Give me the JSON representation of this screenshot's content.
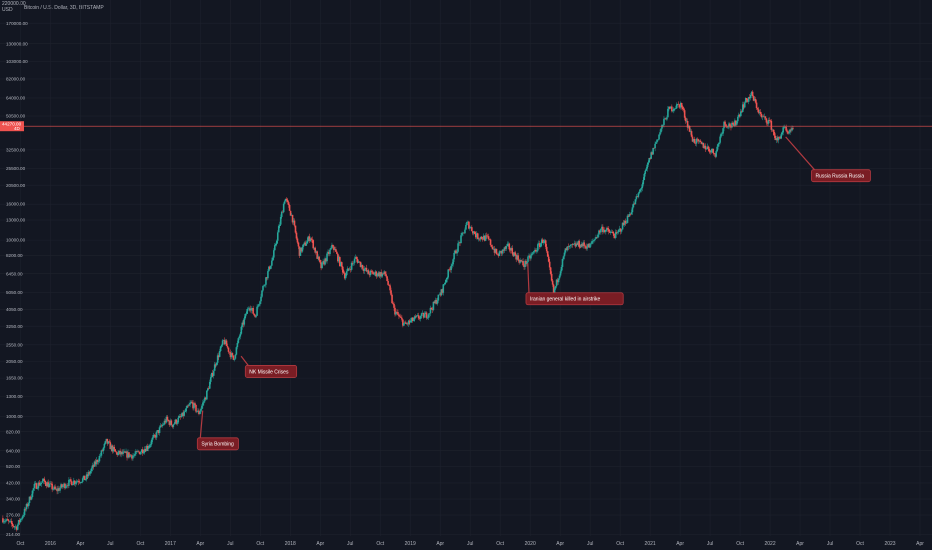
{
  "header": {
    "top_label": "220000.00",
    "currency": "USD",
    "symbol": "Bitcoin / U.S. Dollar, 3D, BITSTAMP"
  },
  "colors": {
    "background": "#131722",
    "grid": "#1e222d",
    "up": "#26a69a",
    "down": "#ef5350",
    "current_line": "#ef5350",
    "annotation_bg": "#7a1d24",
    "annotation_border": "#b13a40"
  },
  "current_price": {
    "label": "44270.00",
    "sub": "4D",
    "value": 44270
  },
  "chart_data": {
    "type": "candlestick",
    "title": "",
    "ylabel": "",
    "xlabel": "",
    "yscale": "log",
    "ylim": [
      210,
      230000
    ],
    "grid": true,
    "y_ticks": [
      "214.00",
      "276.00",
      "340.00",
      "420.00",
      "520.00",
      "640.00",
      "820.00",
      "1000.00",
      "1300.00",
      "1650.00",
      "2050.00",
      "2550.00",
      "3250.00",
      "4050.00",
      "5050.00",
      "6450.00",
      "8200.00",
      "10000.00",
      "13000.00",
      "16000.00",
      "20500.00",
      "25500.00",
      "32500.00",
      "50500.00",
      "64000.00",
      "82000.00",
      "103000.00",
      "130000.00",
      "170000.00"
    ],
    "y_tick_values": [
      214,
      276,
      340,
      420,
      520,
      640,
      820,
      1000,
      1300,
      1650,
      2050,
      2550,
      3250,
      4050,
      5050,
      6450,
      8200,
      10000,
      13000,
      16000,
      20500,
      25500,
      32500,
      50500,
      64000,
      82000,
      103000,
      130000,
      170000
    ],
    "x_ticks": [
      {
        "label": "Oct",
        "t": 2015.75
      },
      {
        "label": "2016",
        "t": 2016.0
      },
      {
        "label": "Apr",
        "t": 2016.25
      },
      {
        "label": "Jul",
        "t": 2016.5
      },
      {
        "label": "Oct",
        "t": 2016.75
      },
      {
        "label": "2017",
        "t": 2017.0
      },
      {
        "label": "Apr",
        "t": 2017.25
      },
      {
        "label": "Jul",
        "t": 2017.5
      },
      {
        "label": "Oct",
        "t": 2017.75
      },
      {
        "label": "2018",
        "t": 2018.0
      },
      {
        "label": "Apr",
        "t": 2018.25
      },
      {
        "label": "Jul",
        "t": 2018.5
      },
      {
        "label": "Oct",
        "t": 2018.75
      },
      {
        "label": "2019",
        "t": 2019.0
      },
      {
        "label": "Apr",
        "t": 2019.25
      },
      {
        "label": "Jul",
        "t": 2019.5
      },
      {
        "label": "Oct",
        "t": 2019.75
      },
      {
        "label": "2020",
        "t": 2020.0
      },
      {
        "label": "Apr",
        "t": 2020.25
      },
      {
        "label": "Jul",
        "t": 2020.5
      },
      {
        "label": "Oct",
        "t": 2020.75
      },
      {
        "label": "2021",
        "t": 2021.0
      },
      {
        "label": "Apr",
        "t": 2021.25
      },
      {
        "label": "Jul",
        "t": 2021.5
      },
      {
        "label": "Oct",
        "t": 2021.75
      },
      {
        "label": "2022",
        "t": 2022.0
      },
      {
        "label": "Apr",
        "t": 2022.25
      },
      {
        "label": "Jul",
        "t": 2022.5
      },
      {
        "label": "Oct",
        "t": 2022.75
      },
      {
        "label": "2023",
        "t": 2023.0
      },
      {
        "label": "Apr",
        "t": 2023.25
      }
    ],
    "xlim": [
      2015.58,
      2023.35
    ],
    "price_path": [
      {
        "t": 2015.6,
        "p": 265
      },
      {
        "t": 2015.72,
        "p": 235
      },
      {
        "t": 2015.8,
        "p": 300
      },
      {
        "t": 2015.87,
        "p": 400
      },
      {
        "t": 2015.95,
        "p": 430
      },
      {
        "t": 2016.05,
        "p": 380
      },
      {
        "t": 2016.15,
        "p": 420
      },
      {
        "t": 2016.3,
        "p": 445
      },
      {
        "t": 2016.42,
        "p": 600
      },
      {
        "t": 2016.47,
        "p": 720
      },
      {
        "t": 2016.55,
        "p": 620
      },
      {
        "t": 2016.7,
        "p": 600
      },
      {
        "t": 2016.82,
        "p": 680
      },
      {
        "t": 2016.97,
        "p": 960
      },
      {
        "t": 2017.02,
        "p": 900
      },
      {
        "t": 2017.1,
        "p": 1000
      },
      {
        "t": 2017.18,
        "p": 1200
      },
      {
        "t": 2017.24,
        "p": 1040
      },
      {
        "t": 2017.3,
        "p": 1300
      },
      {
        "t": 2017.38,
        "p": 2000
      },
      {
        "t": 2017.45,
        "p": 2700
      },
      {
        "t": 2017.53,
        "p": 2100
      },
      {
        "t": 2017.6,
        "p": 3200
      },
      {
        "t": 2017.66,
        "p": 4300
      },
      {
        "t": 2017.71,
        "p": 3700
      },
      {
        "t": 2017.78,
        "p": 5500
      },
      {
        "t": 2017.86,
        "p": 8000
      },
      {
        "t": 2017.96,
        "p": 17500
      },
      {
        "t": 2018.02,
        "p": 13500
      },
      {
        "t": 2018.08,
        "p": 8500
      },
      {
        "t": 2018.17,
        "p": 10500
      },
      {
        "t": 2018.26,
        "p": 7000
      },
      {
        "t": 2018.36,
        "p": 9300
      },
      {
        "t": 2018.46,
        "p": 6300
      },
      {
        "t": 2018.55,
        "p": 7900
      },
      {
        "t": 2018.65,
        "p": 6500
      },
      {
        "t": 2018.8,
        "p": 6400
      },
      {
        "t": 2018.87,
        "p": 4000
      },
      {
        "t": 2018.96,
        "p": 3300
      },
      {
        "t": 2019.05,
        "p": 3600
      },
      {
        "t": 2019.15,
        "p": 3800
      },
      {
        "t": 2019.26,
        "p": 5000
      },
      {
        "t": 2019.38,
        "p": 8500
      },
      {
        "t": 2019.48,
        "p": 12500
      },
      {
        "t": 2019.56,
        "p": 10500
      },
      {
        "t": 2019.65,
        "p": 10200
      },
      {
        "t": 2019.73,
        "p": 8200
      },
      {
        "t": 2019.82,
        "p": 9200
      },
      {
        "t": 2019.95,
        "p": 7200
      },
      {
        "t": 2020.05,
        "p": 8800
      },
      {
        "t": 2020.12,
        "p": 10200
      },
      {
        "t": 2020.2,
        "p": 5000
      },
      {
        "t": 2020.3,
        "p": 8800
      },
      {
        "t": 2020.4,
        "p": 9500
      },
      {
        "t": 2020.5,
        "p": 9200
      },
      {
        "t": 2020.6,
        "p": 11700
      },
      {
        "t": 2020.72,
        "p": 10600
      },
      {
        "t": 2020.82,
        "p": 13500
      },
      {
        "t": 2020.92,
        "p": 19000
      },
      {
        "t": 2021.0,
        "p": 29000
      },
      {
        "t": 2021.08,
        "p": 40000
      },
      {
        "t": 2021.16,
        "p": 55000
      },
      {
        "t": 2021.26,
        "p": 59000
      },
      {
        "t": 2021.36,
        "p": 37000
      },
      {
        "t": 2021.46,
        "p": 34000
      },
      {
        "t": 2021.55,
        "p": 31000
      },
      {
        "t": 2021.62,
        "p": 46000
      },
      {
        "t": 2021.7,
        "p": 44000
      },
      {
        "t": 2021.79,
        "p": 60000
      },
      {
        "t": 2021.85,
        "p": 67000
      },
      {
        "t": 2021.93,
        "p": 50000
      },
      {
        "t": 2022.0,
        "p": 47000
      },
      {
        "t": 2022.06,
        "p": 36000
      },
      {
        "t": 2022.12,
        "p": 43000
      },
      {
        "t": 2022.16,
        "p": 39000
      },
      {
        "t": 2022.19,
        "p": 44270
      }
    ],
    "annotations": [
      {
        "text": "Syria Bombing",
        "t": 2017.27,
        "p": 1080,
        "box_t": 2017.25,
        "box_p": 700
      },
      {
        "text": "NK Missile Crises",
        "t": 2017.59,
        "p": 2200,
        "box_t": 2017.65,
        "box_p": 1800
      },
      {
        "text": "Iranian general killed in airstrike",
        "t": 2019.98,
        "p": 7400,
        "box_t": 2019.99,
        "box_p": 4650
      },
      {
        "text": "Russia Russia Russia",
        "t": 2022.13,
        "p": 38500,
        "box_t": 2022.37,
        "box_p": 23200
      }
    ]
  }
}
